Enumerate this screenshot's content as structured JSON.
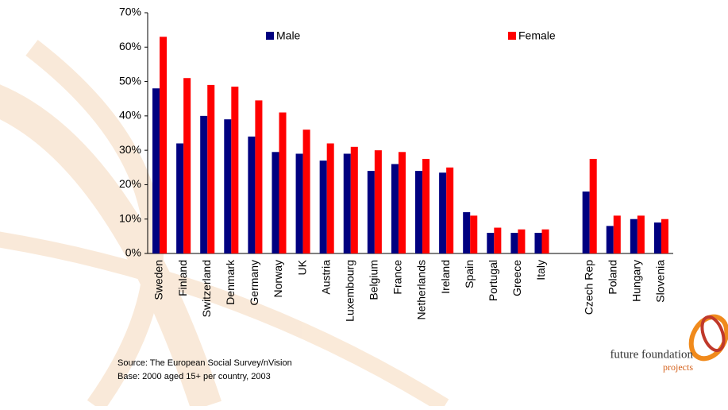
{
  "chart_data": {
    "type": "bar",
    "categories": [
      "Sweden",
      "Finland",
      "Switzerland",
      "Denmark",
      "Germany",
      "Norway",
      "UK",
      "Austria",
      "Luxembourg",
      "Belgium",
      "France",
      "Netherlands",
      "Ireland",
      "Spain",
      "Portugal",
      "Greece",
      "Italy",
      null,
      "Czech Rep",
      "Poland",
      "Hungary",
      "Slovenia"
    ],
    "series": [
      {
        "name": "Male",
        "color": "#000080",
        "values": [
          48,
          32,
          40,
          39,
          34,
          29.5,
          29,
          27,
          29,
          24,
          26,
          24,
          23.5,
          12,
          6,
          6,
          6,
          null,
          18,
          8,
          10,
          9
        ]
      },
      {
        "name": "Female",
        "color": "#ff0000",
        "values": [
          63,
          51,
          49,
          48.5,
          44.5,
          41,
          36,
          32,
          31,
          30,
          29.5,
          27.5,
          25,
          11,
          7.5,
          7,
          7,
          null,
          27.5,
          11,
          11,
          10
        ]
      }
    ],
    "ylim": [
      0,
      70
    ],
    "yticks": [
      {
        "value": 0,
        "label": "0%"
      },
      {
        "value": 10,
        "label": "10%"
      },
      {
        "value": 20,
        "label": "20%"
      },
      {
        "value": 30,
        "label": "30%"
      },
      {
        "value": 40,
        "label": "40%"
      },
      {
        "value": 50,
        "label": "50%"
      },
      {
        "value": 60,
        "label": "60%"
      },
      {
        "value": 70,
        "label": "70%"
      }
    ],
    "grid": false,
    "source": "Source: The European Social Survey/nVision",
    "base": "Base: 2000 aged 15+ per country, 2003"
  },
  "logo": {
    "name": "future foundation",
    "sub": "projects"
  }
}
